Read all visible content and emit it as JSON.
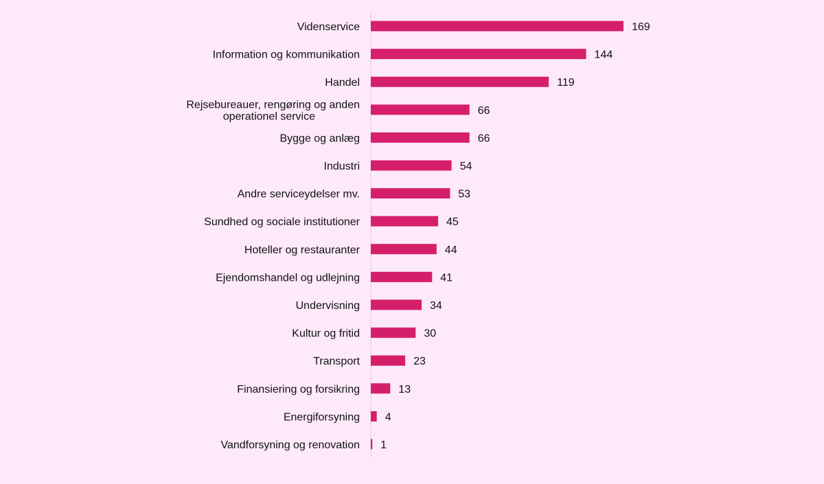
{
  "chart_data": {
    "type": "bar",
    "orientation": "horizontal",
    "categories": [
      "Videnservice",
      "Information og kommunikation",
      "Handel",
      "Rejsebureauer, rengøring og anden operationel service",
      "Bygge og anlæg",
      "Industri",
      "Andre serviceydelser mv.",
      "Sundhed og sociale institutioner",
      "Hoteller og restauranter",
      "Ejendomshandel og udlejning",
      "Undervisning",
      "Kultur og fritid",
      "Transport",
      "Finansiering og forsikring",
      "Energiforsyning",
      "Vandforsyning og renovation"
    ],
    "category_lines": [
      [
        "Videnservice"
      ],
      [
        "Information og kommunikation"
      ],
      [
        "Handel"
      ],
      [
        "Rejsebureauer, rengøring og anden",
        "operationel service"
      ],
      [
        "Bygge og anlæg"
      ],
      [
        "Industri"
      ],
      [
        "Andre serviceydelser mv."
      ],
      [
        "Sundhed og sociale institutioner"
      ],
      [
        "Hoteller og restauranter"
      ],
      [
        "Ejendomshandel og udlejning"
      ],
      [
        "Undervisning"
      ],
      [
        "Kultur og fritid"
      ],
      [
        "Transport"
      ],
      [
        "Finansiering og forsikring"
      ],
      [
        "Energiforsyning"
      ],
      [
        "Vandforsyning og renovation"
      ]
    ],
    "values": [
      169,
      144,
      119,
      66,
      66,
      54,
      53,
      45,
      44,
      41,
      34,
      30,
      23,
      13,
      4,
      1
    ],
    "data_labels": [
      "169",
      "144",
      "119",
      "66",
      "66",
      "54",
      "53",
      "45",
      "44",
      "41",
      "34",
      "30",
      "23",
      "13",
      "4",
      "1"
    ],
    "xlim": [
      0,
      169
    ],
    "grid": false,
    "legend": "none",
    "bar_color": "#d61f6a",
    "axis_color": "#e6c6de",
    "background": "#fde9fa"
  }
}
